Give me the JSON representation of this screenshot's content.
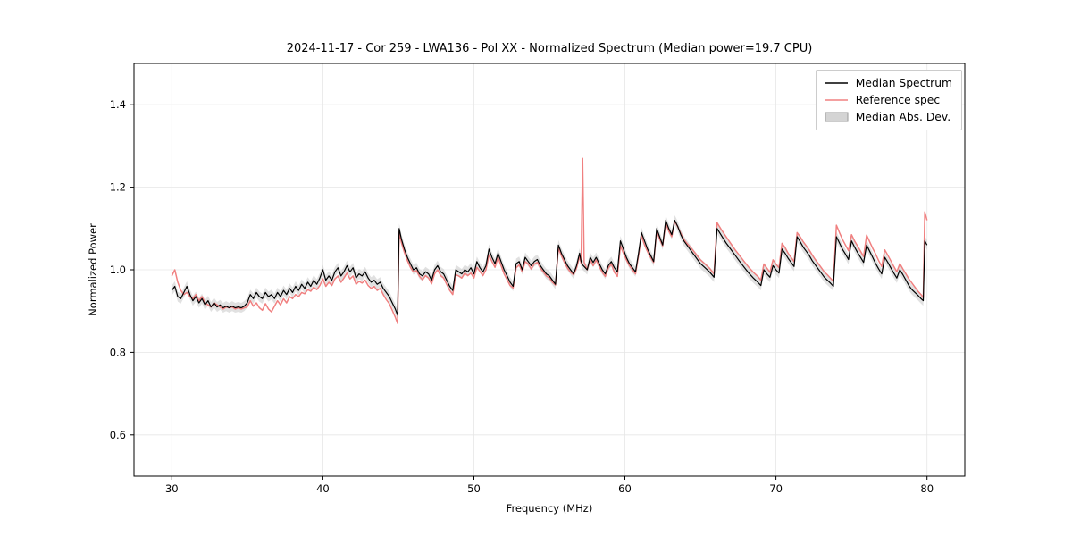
{
  "chart_data": {
    "type": "line",
    "title": "2024-11-17 - Cor 259 - LWA136 - Pol XX - Normalized Spectrum (Median power=19.7 CPU)",
    "xlabel": "Frequency (MHz)",
    "ylabel": "Normalized Power",
    "xlim": [
      27.5,
      82.5
    ],
    "ylim": [
      0.5,
      1.5
    ],
    "xticks": [
      30,
      40,
      50,
      60,
      70,
      80
    ],
    "yticks": [
      0.6,
      0.8,
      1.0,
      1.2,
      1.4
    ],
    "grid": true,
    "legend_position": "upper right",
    "series": [
      {
        "name": "Median Spectrum",
        "type": "line",
        "color": "#000000"
      },
      {
        "name": "Reference spec",
        "type": "line",
        "color": "#f08080"
      },
      {
        "name": "Median Abs. Dev.",
        "type": "band",
        "color": "#c9c9c9",
        "half_width": 0.012
      }
    ],
    "columns": [
      "frequency_mhz",
      "median",
      "reference"
    ],
    "points": [
      [
        30.0,
        0.95,
        0.985
      ],
      [
        30.2,
        0.96,
        1.0
      ],
      [
        30.4,
        0.935,
        0.97
      ],
      [
        30.6,
        0.93,
        0.95
      ],
      [
        30.8,
        0.945,
        0.94
      ],
      [
        31.0,
        0.96,
        0.945
      ],
      [
        31.2,
        0.94,
        0.935
      ],
      [
        31.4,
        0.925,
        0.93
      ],
      [
        31.6,
        0.935,
        0.94
      ],
      [
        31.8,
        0.92,
        0.925
      ],
      [
        32.0,
        0.93,
        0.935
      ],
      [
        32.2,
        0.915,
        0.92
      ],
      [
        32.4,
        0.925,
        0.915
      ],
      [
        32.6,
        0.91,
        0.91
      ],
      [
        32.8,
        0.92,
        0.92
      ],
      [
        33.0,
        0.91,
        0.915
      ],
      [
        33.2,
        0.915,
        0.91
      ],
      [
        33.4,
        0.908,
        0.905
      ],
      [
        33.6,
        0.912,
        0.91
      ],
      [
        33.8,
        0.908,
        0.908
      ],
      [
        34.0,
        0.912,
        0.91
      ],
      [
        34.2,
        0.908,
        0.905
      ],
      [
        34.4,
        0.91,
        0.908
      ],
      [
        34.6,
        0.908,
        0.905
      ],
      [
        34.8,
        0.912,
        0.908
      ],
      [
        35.0,
        0.92,
        0.91
      ],
      [
        35.2,
        0.94,
        0.925
      ],
      [
        35.4,
        0.93,
        0.912
      ],
      [
        35.6,
        0.945,
        0.92
      ],
      [
        35.8,
        0.935,
        0.908
      ],
      [
        36.0,
        0.93,
        0.902
      ],
      [
        36.2,
        0.945,
        0.918
      ],
      [
        36.4,
        0.935,
        0.905
      ],
      [
        36.6,
        0.94,
        0.898
      ],
      [
        36.8,
        0.93,
        0.912
      ],
      [
        37.0,
        0.945,
        0.925
      ],
      [
        37.2,
        0.935,
        0.915
      ],
      [
        37.4,
        0.95,
        0.93
      ],
      [
        37.6,
        0.94,
        0.92
      ],
      [
        37.8,
        0.955,
        0.935
      ],
      [
        38.0,
        0.945,
        0.93
      ],
      [
        38.2,
        0.96,
        0.94
      ],
      [
        38.4,
        0.95,
        0.935
      ],
      [
        38.6,
        0.965,
        0.945
      ],
      [
        38.8,
        0.955,
        0.942
      ],
      [
        39.0,
        0.97,
        0.952
      ],
      [
        39.2,
        0.96,
        0.948
      ],
      [
        39.4,
        0.975,
        0.958
      ],
      [
        39.6,
        0.965,
        0.952
      ],
      [
        39.8,
        0.98,
        0.962
      ],
      [
        40.0,
        1.0,
        0.978
      ],
      [
        40.2,
        0.975,
        0.96
      ],
      [
        40.4,
        0.985,
        0.97
      ],
      [
        40.6,
        0.975,
        0.962
      ],
      [
        40.8,
        0.995,
        0.978
      ],
      [
        41.0,
        1.005,
        0.985
      ],
      [
        41.2,
        0.985,
        0.97
      ],
      [
        41.4,
        0.995,
        0.98
      ],
      [
        41.6,
        1.01,
        0.992
      ],
      [
        41.8,
        0.995,
        0.978
      ],
      [
        42.0,
        1.005,
        0.985
      ],
      [
        42.2,
        0.98,
        0.965
      ],
      [
        42.4,
        0.99,
        0.972
      ],
      [
        42.6,
        0.985,
        0.968
      ],
      [
        42.8,
        0.995,
        0.975
      ],
      [
        43.0,
        0.98,
        0.962
      ],
      [
        43.2,
        0.97,
        0.955
      ],
      [
        43.4,
        0.975,
        0.96
      ],
      [
        43.6,
        0.965,
        0.95
      ],
      [
        43.8,
        0.97,
        0.955
      ],
      [
        44.0,
        0.955,
        0.94
      ],
      [
        44.2,
        0.945,
        0.928
      ],
      [
        44.4,
        0.935,
        0.918
      ],
      [
        44.6,
        0.92,
        0.902
      ],
      [
        44.8,
        0.905,
        0.885
      ],
      [
        44.95,
        0.89,
        0.87
      ],
      [
        45.05,
        1.1,
        1.092
      ],
      [
        45.2,
        1.075,
        1.066
      ],
      [
        45.4,
        1.05,
        1.042
      ],
      [
        45.6,
        1.03,
        1.022
      ],
      [
        45.8,
        1.015,
        1.006
      ],
      [
        46.0,
        1.0,
        0.995
      ],
      [
        46.2,
        1.005,
        0.998
      ],
      [
        46.4,
        0.99,
        0.984
      ],
      [
        46.6,
        0.985,
        0.976
      ],
      [
        46.8,
        0.995,
        0.986
      ],
      [
        47.0,
        0.99,
        0.98
      ],
      [
        47.2,
        0.975,
        0.966
      ],
      [
        47.4,
        1.0,
        0.99
      ],
      [
        47.6,
        1.01,
        1.0
      ],
      [
        47.8,
        0.995,
        0.986
      ],
      [
        48.0,
        0.99,
        0.98
      ],
      [
        48.2,
        0.975,
        0.965
      ],
      [
        48.4,
        0.96,
        0.95
      ],
      [
        48.6,
        0.95,
        0.94
      ],
      [
        48.8,
        1.0,
        0.988
      ],
      [
        49.0,
        0.995,
        0.985
      ],
      [
        49.2,
        0.99,
        0.98
      ],
      [
        49.4,
        1.0,
        0.992
      ],
      [
        49.6,
        0.995,
        0.986
      ],
      [
        49.8,
        1.005,
        0.992
      ],
      [
        50.0,
        0.99,
        0.98
      ],
      [
        50.2,
        1.02,
        1.006
      ],
      [
        50.4,
        1.005,
        0.996
      ],
      [
        50.6,
        0.995,
        0.986
      ],
      [
        50.8,
        1.01,
        1.0
      ],
      [
        51.0,
        1.05,
        1.036
      ],
      [
        51.2,
        1.03,
        1.02
      ],
      [
        51.4,
        1.015,
        1.006
      ],
      [
        51.6,
        1.04,
        1.03
      ],
      [
        51.8,
        1.02,
        1.01
      ],
      [
        52.0,
        1.0,
        0.99
      ],
      [
        52.2,
        0.985,
        0.976
      ],
      [
        52.4,
        0.97,
        0.962
      ],
      [
        52.6,
        0.96,
        0.956
      ],
      [
        52.8,
        1.015,
        1.005
      ],
      [
        53.0,
        1.02,
        1.012
      ],
      [
        53.2,
        1.0,
        0.995
      ],
      [
        53.4,
        1.03,
        1.02
      ],
      [
        53.6,
        1.02,
        1.014
      ],
      [
        53.8,
        1.01,
        1.002
      ],
      [
        54.0,
        1.02,
        1.014
      ],
      [
        54.2,
        1.025,
        1.018
      ],
      [
        54.4,
        1.01,
        1.004
      ],
      [
        54.6,
        1.0,
        0.995
      ],
      [
        54.8,
        0.99,
        0.985
      ],
      [
        55.0,
        0.985,
        0.98
      ],
      [
        55.2,
        0.975,
        0.97
      ],
      [
        55.4,
        0.965,
        0.963
      ],
      [
        55.6,
        1.06,
        1.052
      ],
      [
        55.8,
        1.04,
        1.034
      ],
      [
        56.0,
        1.025,
        1.018
      ],
      [
        56.2,
        1.01,
        1.004
      ],
      [
        56.4,
        1.0,
        0.994
      ],
      [
        56.6,
        0.99,
        0.988
      ],
      [
        56.8,
        1.01,
        1.004
      ],
      [
        57.0,
        1.04,
        1.032
      ],
      [
        57.1,
        1.02,
        1.016
      ],
      [
        57.2,
        1.012,
        1.27
      ],
      [
        57.3,
        1.008,
        1.018
      ],
      [
        57.5,
        1.0,
        1.0
      ],
      [
        57.7,
        1.03,
        1.024
      ],
      [
        57.9,
        1.018,
        1.01
      ],
      [
        58.1,
        1.03,
        1.024
      ],
      [
        58.3,
        1.015,
        1.008
      ],
      [
        58.5,
        1.0,
        0.994
      ],
      [
        58.7,
        0.99,
        0.984
      ],
      [
        58.9,
        1.01,
        1.004
      ],
      [
        59.1,
        1.02,
        1.014
      ],
      [
        59.3,
        1.005,
        0.994
      ],
      [
        59.5,
        0.995,
        0.984
      ],
      [
        59.7,
        1.07,
        1.058
      ],
      [
        59.9,
        1.05,
        1.04
      ],
      [
        60.1,
        1.03,
        1.024
      ],
      [
        60.3,
        1.015,
        1.01
      ],
      [
        60.5,
        1.005,
        1.0
      ],
      [
        60.7,
        0.995,
        0.99
      ],
      [
        60.9,
        1.04,
        1.034
      ],
      [
        61.1,
        1.09,
        1.082
      ],
      [
        61.3,
        1.07,
        1.06
      ],
      [
        61.5,
        1.05,
        1.044
      ],
      [
        61.7,
        1.035,
        1.03
      ],
      [
        61.9,
        1.02,
        1.018
      ],
      [
        62.1,
        1.1,
        1.094
      ],
      [
        62.3,
        1.08,
        1.074
      ],
      [
        62.5,
        1.06,
        1.058
      ],
      [
        62.7,
        1.12,
        1.112
      ],
      [
        62.9,
        1.1,
        1.094
      ],
      [
        63.1,
        1.085,
        1.08
      ],
      [
        63.3,
        1.12,
        1.118
      ],
      [
        63.5,
        1.105,
        1.104
      ],
      [
        63.7,
        1.085,
        1.088
      ],
      [
        63.9,
        1.07,
        1.074
      ],
      [
        64.1,
        1.06,
        1.064
      ],
      [
        64.4,
        1.045,
        1.052
      ],
      [
        64.7,
        1.03,
        1.038
      ],
      [
        65.0,
        1.015,
        1.024
      ],
      [
        65.3,
        1.005,
        1.014
      ],
      [
        65.6,
        0.995,
        1.004
      ],
      [
        65.9,
        0.982,
        0.99
      ],
      [
        66.1,
        1.1,
        1.114
      ],
      [
        66.4,
        1.082,
        1.096
      ],
      [
        66.7,
        1.065,
        1.08
      ],
      [
        67.0,
        1.05,
        1.064
      ],
      [
        67.3,
        1.035,
        1.048
      ],
      [
        67.6,
        1.02,
        1.034
      ],
      [
        67.9,
        1.006,
        1.02
      ],
      [
        68.2,
        0.992,
        1.006
      ],
      [
        68.5,
        0.98,
        0.994
      ],
      [
        68.8,
        0.97,
        0.984
      ],
      [
        69.0,
        0.962,
        0.975
      ],
      [
        69.2,
        1.0,
        1.014
      ],
      [
        69.4,
        0.99,
        1.004
      ],
      [
        69.6,
        0.982,
        0.994
      ],
      [
        69.8,
        1.01,
        1.024
      ],
      [
        70.0,
        1.0,
        1.014
      ],
      [
        70.2,
        0.992,
        1.005
      ],
      [
        70.4,
        1.05,
        1.064
      ],
      [
        70.6,
        1.04,
        1.054
      ],
      [
        70.8,
        1.028,
        1.04
      ],
      [
        71.0,
        1.018,
        1.03
      ],
      [
        71.2,
        1.008,
        1.02
      ],
      [
        71.4,
        1.08,
        1.09
      ],
      [
        71.6,
        1.068,
        1.08
      ],
      [
        71.8,
        1.055,
        1.068
      ],
      [
        72.0,
        1.045,
        1.058
      ],
      [
        72.2,
        1.035,
        1.048
      ],
      [
        72.4,
        1.022,
        1.036
      ],
      [
        72.6,
        1.012,
        1.025
      ],
      [
        72.8,
        1.002,
        1.015
      ],
      [
        73.0,
        0.992,
        1.005
      ],
      [
        73.2,
        0.982,
        0.995
      ],
      [
        73.4,
        0.975,
        0.988
      ],
      [
        73.6,
        0.968,
        0.98
      ],
      [
        73.8,
        0.96,
        0.972
      ],
      [
        74.0,
        1.08,
        1.108
      ],
      [
        74.2,
        1.065,
        1.09
      ],
      [
        74.4,
        1.05,
        1.074
      ],
      [
        74.6,
        1.038,
        1.06
      ],
      [
        74.8,
        1.025,
        1.046
      ],
      [
        75.0,
        1.07,
        1.085
      ],
      [
        75.2,
        1.055,
        1.07
      ],
      [
        75.4,
        1.042,
        1.058
      ],
      [
        75.6,
        1.03,
        1.045
      ],
      [
        75.8,
        1.018,
        1.032
      ],
      [
        76.0,
        1.06,
        1.084
      ],
      [
        76.2,
        1.045,
        1.068
      ],
      [
        76.4,
        1.03,
        1.052
      ],
      [
        76.6,
        1.015,
        1.038
      ],
      [
        76.8,
        1.002,
        1.022
      ],
      [
        77.0,
        0.99,
        1.008
      ],
      [
        77.2,
        1.03,
        1.048
      ],
      [
        77.4,
        1.018,
        1.035
      ],
      [
        77.6,
        1.005,
        1.022
      ],
      [
        77.8,
        0.992,
        1.008
      ],
      [
        78.0,
        0.98,
        0.995
      ],
      [
        78.2,
        1.0,
        1.015
      ],
      [
        78.4,
        0.988,
        1.002
      ],
      [
        78.6,
        0.975,
        0.99
      ],
      [
        78.8,
        0.962,
        0.978
      ],
      [
        79.0,
        0.952,
        0.968
      ],
      [
        79.2,
        0.945,
        0.958
      ],
      [
        79.4,
        0.938,
        0.948
      ],
      [
        79.6,
        0.93,
        0.94
      ],
      [
        79.75,
        0.925,
        0.932
      ],
      [
        79.85,
        1.07,
        1.14
      ],
      [
        80.0,
        1.06,
        1.12
      ]
    ]
  }
}
